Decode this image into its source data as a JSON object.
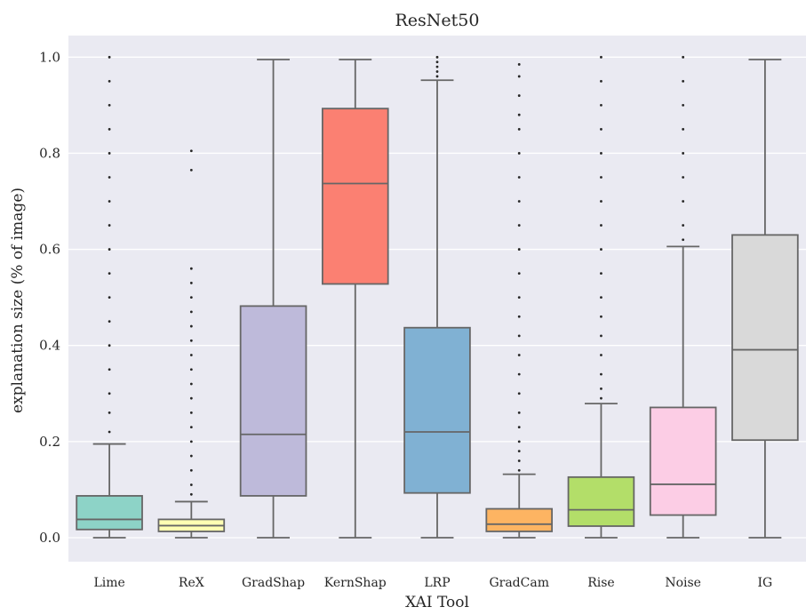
{
  "chart_data": {
    "type": "box",
    "title": "ResNet50",
    "xlabel": "XAI Tool",
    "ylabel": "explanation size (% of image)",
    "ylim": [
      -0.05,
      1.045
    ],
    "yticks": [
      "0.0",
      "0.2",
      "0.4",
      "0.6",
      "0.8",
      "1.0"
    ],
    "grid": true,
    "background": "#eaeaf2",
    "line_color": "#666666",
    "categories": [
      "Lime",
      "ReX",
      "GradShap",
      "KernShap",
      "LRP",
      "GradCam",
      "Rise",
      "Noise",
      "IG"
    ],
    "series": [
      {
        "category": "Lime",
        "color": "#8dd3c7",
        "whisker_low": 0.0,
        "q1": 0.017,
        "median": 0.038,
        "q3": 0.087,
        "whisker_high": 0.195,
        "outliers": [
          0.22,
          0.26,
          0.3,
          0.35,
          0.4,
          0.45,
          0.5,
          0.55,
          0.6,
          0.65,
          0.7,
          0.75,
          0.8,
          0.85,
          0.9,
          0.95,
          1.0
        ]
      },
      {
        "category": "ReX",
        "color": "#ffffb3",
        "whisker_low": 0.0,
        "q1": 0.013,
        "median": 0.025,
        "q3": 0.038,
        "whisker_high": 0.075,
        "outliers": [
          0.09,
          0.11,
          0.14,
          0.17,
          0.2,
          0.23,
          0.26,
          0.29,
          0.32,
          0.35,
          0.38,
          0.41,
          0.44,
          0.47,
          0.5,
          0.53,
          0.56,
          0.765,
          0.805
        ]
      },
      {
        "category": "GradShap",
        "color": "#bebada",
        "whisker_low": 0.0,
        "q1": 0.087,
        "median": 0.215,
        "q3": 0.482,
        "whisker_high": 0.995,
        "outliers": []
      },
      {
        "category": "KernShap",
        "color": "#fb8072",
        "whisker_low": 0.0,
        "q1": 0.528,
        "median": 0.737,
        "q3": 0.893,
        "whisker_high": 0.995,
        "outliers": []
      },
      {
        "category": "LRP",
        "color": "#80b1d3",
        "whisker_low": 0.0,
        "q1": 0.093,
        "median": 0.22,
        "q3": 0.437,
        "whisker_high": 0.952,
        "outliers": [
          0.96,
          0.97,
          0.98,
          0.99,
          1.0
        ]
      },
      {
        "category": "GradCam",
        "color": "#fdb462",
        "whisker_low": 0.0,
        "q1": 0.013,
        "median": 0.028,
        "q3": 0.06,
        "whisker_high": 0.132,
        "outliers": [
          0.14,
          0.16,
          0.18,
          0.2,
          0.23,
          0.26,
          0.3,
          0.34,
          0.38,
          0.42,
          0.46,
          0.5,
          0.55,
          0.6,
          0.65,
          0.7,
          0.75,
          0.8,
          0.85,
          0.88,
          0.92,
          0.96,
          0.985
        ]
      },
      {
        "category": "Rise",
        "color": "#b3de69",
        "whisker_low": 0.0,
        "q1": 0.024,
        "median": 0.058,
        "q3": 0.126,
        "whisker_high": 0.279,
        "outliers": [
          0.29,
          0.31,
          0.34,
          0.38,
          0.42,
          0.46,
          0.5,
          0.55,
          0.6,
          0.65,
          0.7,
          0.75,
          0.8,
          0.85,
          0.9,
          0.95,
          1.0
        ]
      },
      {
        "category": "Noise",
        "color": "#fccde5",
        "whisker_low": 0.0,
        "q1": 0.047,
        "median": 0.111,
        "q3": 0.271,
        "whisker_high": 0.606,
        "outliers": [
          0.62,
          0.65,
          0.7,
          0.75,
          0.8,
          0.85,
          0.9,
          0.95,
          1.0
        ]
      },
      {
        "category": "IG",
        "color": "#d9d9d9",
        "whisker_low": 0.0,
        "q1": 0.203,
        "median": 0.391,
        "q3": 0.63,
        "whisker_high": 0.995,
        "outliers": []
      }
    ]
  }
}
